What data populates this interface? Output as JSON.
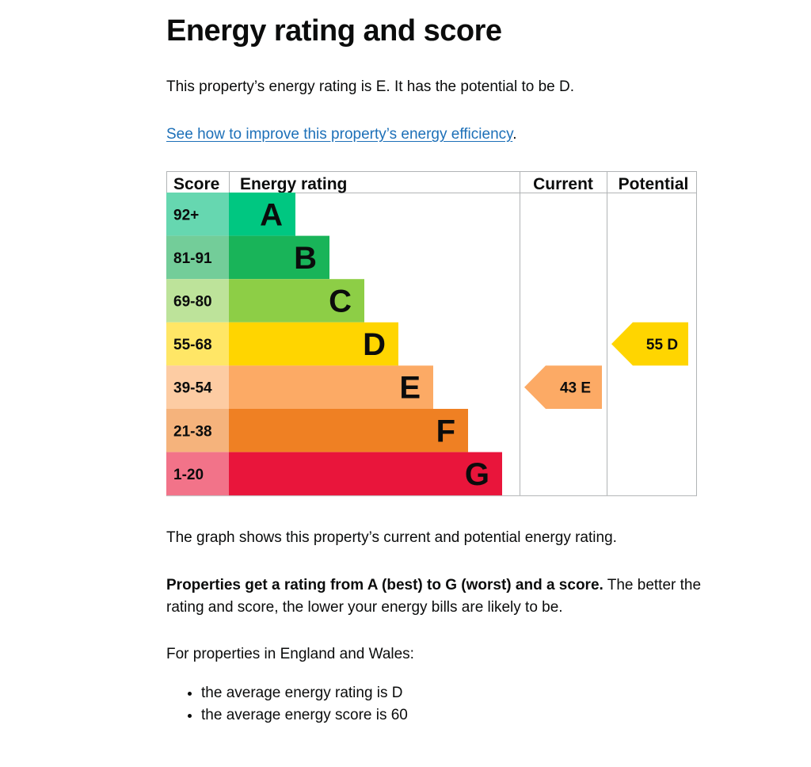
{
  "page": {
    "title": "Energy rating and score",
    "intro": "This property’s energy rating is E. It has the potential to be D.",
    "link_text": "See how to improve this property’s energy efficiency",
    "link_suffix": ".",
    "graph_caption": "The graph shows this property’s current and potential energy rating.",
    "properties_bold": "Properties get a rating from A (best) to G (worst) and a score.",
    "properties_rest": " The better the rating and score, the lower your energy bills are likely to be.",
    "region_text": "For properties in England and Wales:",
    "bullets": [
      "the average energy rating is D",
      "the average energy score is 60"
    ]
  },
  "chart_data": {
    "type": "bar",
    "headers": {
      "score": "Score",
      "rating": "Energy rating",
      "current": "Current",
      "potential": "Potential"
    },
    "bands": [
      {
        "letter": "A",
        "range": "92+",
        "color": "#00c781",
        "score_color": "#66d7b0"
      },
      {
        "letter": "B",
        "range": "81-91",
        "color": "#19b459",
        "score_color": "#73cd99"
      },
      {
        "letter": "C",
        "range": "69-80",
        "color": "#8dce46",
        "score_color": "#bde39a"
      },
      {
        "letter": "D",
        "range": "55-68",
        "color": "#ffd500",
        "score_color": "#ffe666"
      },
      {
        "letter": "E",
        "range": "39-54",
        "color": "#fcaa65",
        "score_color": "#fdcca3"
      },
      {
        "letter": "F",
        "range": "21-38",
        "color": "#ef8023",
        "score_color": "#f5b37c"
      },
      {
        "letter": "G",
        "range": "1-20",
        "color": "#e9153b",
        "score_color": "#f27389"
      }
    ],
    "current": {
      "score": 43,
      "rating": "E",
      "label": "43 E"
    },
    "potential": {
      "score": 55,
      "rating": "D",
      "label": "55 D"
    }
  }
}
